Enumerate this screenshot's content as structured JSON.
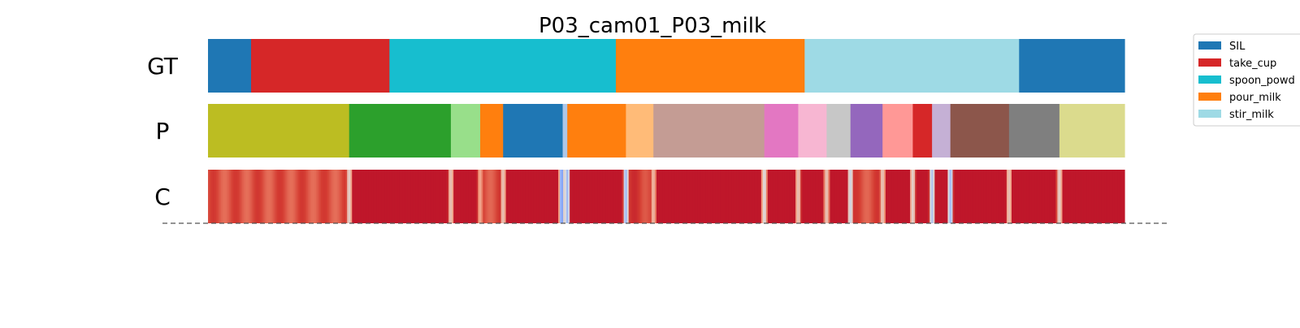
{
  "chart_data": {
    "type": "segmentation-timeline",
    "title": "P03_cam01_P03_milk",
    "xlim": [
      0,
      1
    ],
    "rows": [
      {
        "label": "GT",
        "kind": "segments",
        "segments": [
          {
            "start": 0.0,
            "end": 0.047,
            "color": "#1f77b4",
            "action": "SIL"
          },
          {
            "start": 0.047,
            "end": 0.198,
            "color": "#d62728",
            "action": "take_cup"
          },
          {
            "start": 0.198,
            "end": 0.445,
            "color": "#17becf",
            "action": "spoon_powder"
          },
          {
            "start": 0.445,
            "end": 0.651,
            "color": "#ff7f0e",
            "action": "pour_milk"
          },
          {
            "start": 0.651,
            "end": 0.885,
            "color": "#9edae5",
            "action": "stir_milk"
          },
          {
            "start": 0.885,
            "end": 1.0,
            "color": "#1f77b4",
            "action": "SIL"
          }
        ]
      },
      {
        "label": "P",
        "kind": "segments",
        "segments": [
          {
            "start": 0.0,
            "end": 0.154,
            "color": "#bcbd22"
          },
          {
            "start": 0.154,
            "end": 0.265,
            "color": "#2ca02c"
          },
          {
            "start": 0.265,
            "end": 0.297,
            "color": "#98df8a"
          },
          {
            "start": 0.297,
            "end": 0.322,
            "color": "#ff7f0e"
          },
          {
            "start": 0.322,
            "end": 0.387,
            "color": "#1f77b4"
          },
          {
            "start": 0.387,
            "end": 0.392,
            "color": "#aec7e8"
          },
          {
            "start": 0.392,
            "end": 0.456,
            "color": "#ff7f0e"
          },
          {
            "start": 0.456,
            "end": 0.486,
            "color": "#ffbb78"
          },
          {
            "start": 0.486,
            "end": 0.607,
            "color": "#c49c94"
          },
          {
            "start": 0.607,
            "end": 0.644,
            "color": "#e377c2"
          },
          {
            "start": 0.644,
            "end": 0.675,
            "color": "#f7b6d2"
          },
          {
            "start": 0.675,
            "end": 0.701,
            "color": "#c7c7c7"
          },
          {
            "start": 0.701,
            "end": 0.736,
            "color": "#9467bd"
          },
          {
            "start": 0.736,
            "end": 0.769,
            "color": "#ff9896"
          },
          {
            "start": 0.769,
            "end": 0.79,
            "color": "#d62728"
          },
          {
            "start": 0.79,
            "end": 0.81,
            "color": "#c5b0d5"
          },
          {
            "start": 0.81,
            "end": 0.874,
            "color": "#8c564b"
          },
          {
            "start": 0.874,
            "end": 0.929,
            "color": "#7f7f7f"
          },
          {
            "start": 0.929,
            "end": 1.0,
            "color": "#dbdb8d"
          }
        ]
      },
      {
        "label": "C",
        "kind": "confidence",
        "colormap": "coolwarm",
        "default_value": 0.96,
        "dips": [
          {
            "at": 0.154,
            "value": 0.55
          },
          {
            "at": 0.265,
            "value": 0.6
          },
          {
            "at": 0.297,
            "value": 0.7
          },
          {
            "at": 0.322,
            "value": 0.6
          },
          {
            "at": 0.386,
            "value": 0.2
          },
          {
            "at": 0.392,
            "value": 0.3
          },
          {
            "at": 0.456,
            "value": 0.3
          },
          {
            "at": 0.486,
            "value": 0.65
          },
          {
            "at": 0.607,
            "value": 0.5
          },
          {
            "at": 0.644,
            "value": 0.6
          },
          {
            "at": 0.675,
            "value": 0.6
          },
          {
            "at": 0.701,
            "value": 0.45
          },
          {
            "at": 0.736,
            "value": 0.6
          },
          {
            "at": 0.769,
            "value": 0.55
          },
          {
            "at": 0.79,
            "value": 0.35
          },
          {
            "at": 0.81,
            "value": 0.3
          },
          {
            "at": 0.874,
            "value": 0.6
          },
          {
            "at": 0.929,
            "value": 0.55
          }
        ],
        "soft_regions": [
          {
            "start": 0.0,
            "end": 0.15,
            "value": 0.85
          },
          {
            "start": 0.297,
            "end": 0.32,
            "value": 0.86
          },
          {
            "start": 0.702,
            "end": 0.735,
            "value": 0.86
          },
          {
            "start": 0.455,
            "end": 0.485,
            "value": 0.88
          }
        ]
      }
    ],
    "legend": {
      "placement": "upper-right",
      "entries": [
        {
          "label": "SIL",
          "color": "#1f77b4"
        },
        {
          "label": "take_cup",
          "color": "#d62728"
        },
        {
          "label": "spoon_powd",
          "color": "#17becf"
        },
        {
          "label": "pour_milk",
          "color": "#ff7f0e"
        },
        {
          "label": "stir_milk",
          "color": "#9edae5"
        }
      ]
    },
    "baseline": {
      "style": "dashed",
      "color": "#555555"
    }
  }
}
